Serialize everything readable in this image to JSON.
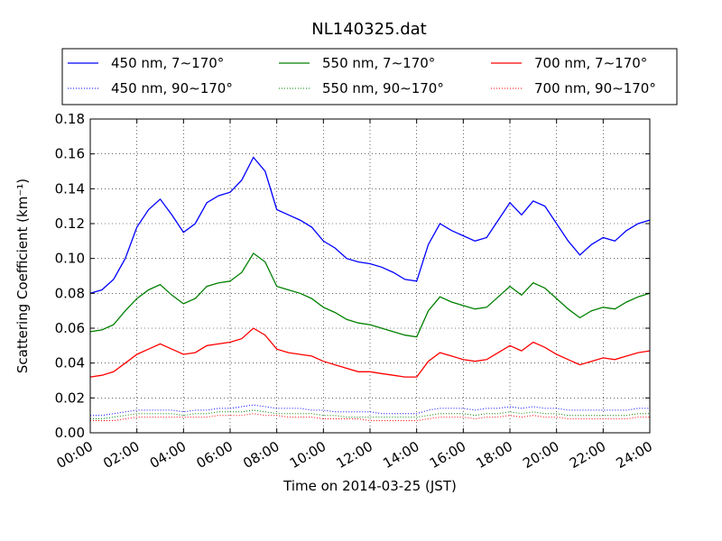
{
  "chart_data": {
    "type": "line",
    "title": "NL140325.dat",
    "xlabel": "Time on 2014-03-25 (JST)",
    "ylabel": "Scattering Coefficient (km⁻¹)",
    "xlim": [
      "00:00",
      "24:00"
    ],
    "ylim": [
      0,
      0.18
    ],
    "xticks": [
      "00:00",
      "02:00",
      "04:00",
      "06:00",
      "08:00",
      "10:00",
      "12:00",
      "14:00",
      "16:00",
      "18:00",
      "20:00",
      "22:00",
      "24:00"
    ],
    "yticks": [
      "0.00",
      "0.02",
      "0.04",
      "0.06",
      "0.08",
      "0.10",
      "0.12",
      "0.14",
      "0.16",
      "0.18"
    ],
    "grid": true,
    "legend_placement": "top",
    "x": [
      "00:00",
      "00:30",
      "01:00",
      "01:30",
      "02:00",
      "02:30",
      "03:00",
      "03:30",
      "04:00",
      "04:30",
      "05:00",
      "05:30",
      "06:00",
      "06:30",
      "07:00",
      "07:30",
      "08:00",
      "08:30",
      "09:00",
      "09:30",
      "10:00",
      "10:30",
      "11:00",
      "11:30",
      "12:00",
      "12:30",
      "13:00",
      "13:30",
      "14:00",
      "14:30",
      "15:00",
      "15:30",
      "16:00",
      "16:30",
      "17:00",
      "17:30",
      "18:00",
      "18:30",
      "19:00",
      "19:30",
      "20:00",
      "20:30",
      "21:00",
      "21:30",
      "22:00",
      "22:30",
      "23:00",
      "23:30",
      "24:00"
    ],
    "series": [
      {
        "name": "450 nm, 7∼170°",
        "style": "solid",
        "color": "#0000ff",
        "values": [
          0.08,
          0.082,
          0.088,
          0.1,
          0.118,
          0.128,
          0.134,
          0.125,
          0.115,
          0.12,
          0.132,
          0.136,
          0.138,
          0.145,
          0.158,
          0.15,
          0.128,
          0.125,
          0.122,
          0.118,
          0.11,
          0.106,
          0.1,
          0.098,
          0.097,
          0.095,
          0.092,
          0.088,
          0.087,
          0.108,
          0.12,
          0.116,
          0.113,
          0.11,
          0.112,
          0.122,
          0.132,
          0.125,
          0.133,
          0.13,
          0.12,
          0.11,
          0.102,
          0.108,
          0.112,
          0.11,
          0.116,
          0.12,
          0.122
        ]
      },
      {
        "name": "550 nm, 7∼170°",
        "style": "solid",
        "color": "#008000",
        "values": [
          0.058,
          0.059,
          0.062,
          0.07,
          0.077,
          0.082,
          0.085,
          0.079,
          0.074,
          0.077,
          0.084,
          0.086,
          0.087,
          0.092,
          0.103,
          0.098,
          0.084,
          0.082,
          0.08,
          0.077,
          0.072,
          0.069,
          0.065,
          0.063,
          0.062,
          0.06,
          0.058,
          0.056,
          0.055,
          0.07,
          0.078,
          0.075,
          0.073,
          0.071,
          0.072,
          0.078,
          0.084,
          0.079,
          0.086,
          0.083,
          0.077,
          0.071,
          0.066,
          0.07,
          0.072,
          0.071,
          0.075,
          0.078,
          0.08
        ]
      },
      {
        "name": "700 nm, 7∼170°",
        "style": "solid",
        "color": "#ff0000",
        "values": [
          0.032,
          0.033,
          0.035,
          0.04,
          0.045,
          0.048,
          0.051,
          0.048,
          0.045,
          0.046,
          0.05,
          0.051,
          0.052,
          0.054,
          0.06,
          0.056,
          0.048,
          0.046,
          0.045,
          0.044,
          0.041,
          0.039,
          0.037,
          0.035,
          0.035,
          0.034,
          0.033,
          0.032,
          0.032,
          0.041,
          0.046,
          0.044,
          0.042,
          0.041,
          0.042,
          0.046,
          0.05,
          0.047,
          0.052,
          0.049,
          0.045,
          0.042,
          0.039,
          0.041,
          0.043,
          0.042,
          0.044,
          0.046,
          0.047
        ]
      },
      {
        "name": "450 nm, 90∼170°",
        "style": "dotted",
        "color": "#0000ff",
        "values": [
          0.01,
          0.01,
          0.011,
          0.012,
          0.013,
          0.013,
          0.013,
          0.013,
          0.012,
          0.013,
          0.013,
          0.014,
          0.014,
          0.015,
          0.016,
          0.015,
          0.014,
          0.014,
          0.014,
          0.013,
          0.013,
          0.012,
          0.012,
          0.012,
          0.012,
          0.011,
          0.011,
          0.011,
          0.011,
          0.013,
          0.014,
          0.014,
          0.014,
          0.013,
          0.014,
          0.014,
          0.015,
          0.014,
          0.015,
          0.014,
          0.014,
          0.013,
          0.013,
          0.013,
          0.013,
          0.013,
          0.013,
          0.014,
          0.014
        ]
      },
      {
        "name": "550 nm, 90∼170°",
        "style": "dotted",
        "color": "#008000",
        "values": [
          0.008,
          0.008,
          0.009,
          0.01,
          0.011,
          0.011,
          0.011,
          0.011,
          0.01,
          0.011,
          0.011,
          0.012,
          0.012,
          0.012,
          0.013,
          0.012,
          0.011,
          0.011,
          0.011,
          0.011,
          0.01,
          0.01,
          0.009,
          0.009,
          0.009,
          0.009,
          0.009,
          0.009,
          0.009,
          0.01,
          0.011,
          0.011,
          0.011,
          0.01,
          0.011,
          0.011,
          0.012,
          0.011,
          0.012,
          0.011,
          0.011,
          0.01,
          0.01,
          0.01,
          0.01,
          0.01,
          0.01,
          0.011,
          0.011
        ]
      },
      {
        "name": "700 nm, 90∼170°",
        "style": "dotted",
        "color": "#ff0000",
        "values": [
          0.007,
          0.007,
          0.007,
          0.008,
          0.009,
          0.009,
          0.009,
          0.009,
          0.009,
          0.009,
          0.009,
          0.01,
          0.01,
          0.01,
          0.011,
          0.01,
          0.01,
          0.009,
          0.009,
          0.009,
          0.008,
          0.008,
          0.008,
          0.008,
          0.007,
          0.007,
          0.007,
          0.007,
          0.007,
          0.008,
          0.009,
          0.009,
          0.009,
          0.008,
          0.009,
          0.009,
          0.01,
          0.009,
          0.01,
          0.009,
          0.009,
          0.008,
          0.008,
          0.008,
          0.008,
          0.008,
          0.008,
          0.009,
          0.009
        ]
      }
    ]
  }
}
